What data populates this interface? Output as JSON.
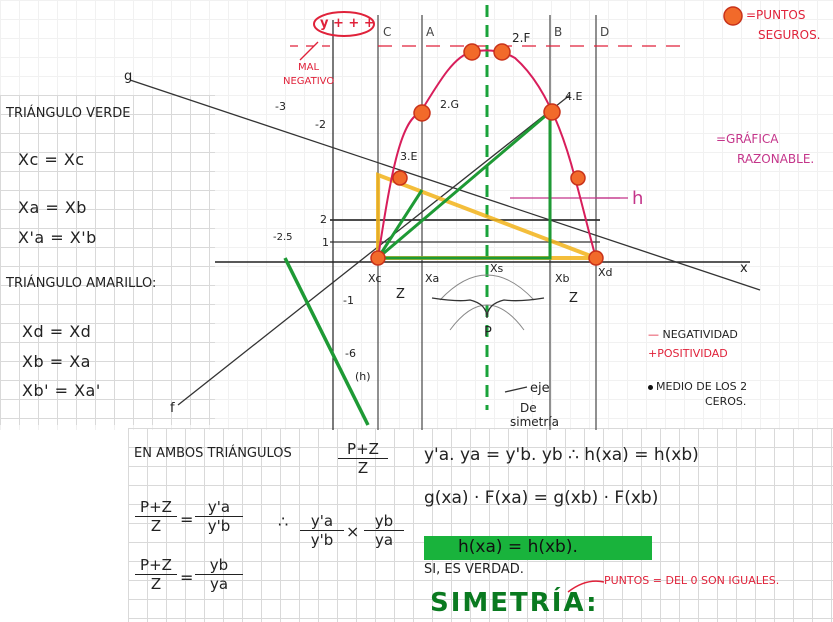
{
  "legend_top": {
    "safe_points_label": "=PUNTOS",
    "safe_points_label_2": "SEGUROS.",
    "y_signs": "y + + +",
    "bad_negative": "MAL",
    "bad_negative_2": "NEGATIVO",
    "reasonable_graph": "=GRÁFICA",
    "reasonable_graph_2": "RAZONABLE.",
    "h_label": "h"
  },
  "graph": {
    "col_labels": [
      "C",
      "A",
      "B",
      "D"
    ],
    "axis_x": "x",
    "axis_y": "y",
    "axis_f": "f",
    "axis_g": "g",
    "tick_pos": [
      "1",
      "2"
    ],
    "tick_neg": [
      "-1",
      "-2",
      "-3",
      "-6",
      "-2.5"
    ],
    "h_mark": "(h)",
    "point_labels": [
      "2.F",
      "2.G",
      "4.E",
      "3.E"
    ],
    "bottom_labels": [
      "Xc",
      "Xa",
      "Xs",
      "Xb",
      "Xd"
    ],
    "z_labels": [
      "Z",
      "Z"
    ],
    "p_label": "P",
    "axis_sym": "eje",
    "axis_sym_2": "De",
    "axis_sym_3": "simetría"
  },
  "green_triangle": {
    "title": "TRIÁNGULO VERDE",
    "lines": [
      "Xc = Xc",
      "Xa = Xb",
      "X'a = X'b"
    ]
  },
  "yellow_triangle": {
    "title": "TRIÁNGULO AMARILLO:",
    "lines": [
      "Xd = Xd",
      "Xb = Xa",
      "Xb' = Xa'"
    ]
  },
  "legend_right": {
    "negativity": "NEGATIVIDAD",
    "positivity": "POSITIVIDAD",
    "midpoint": "MEDIO DE LOS 2",
    "midpoint_2": "CEROS."
  },
  "bottom_left": {
    "intro": "EN AMBOS TRIÁNGULOS",
    "frac_pz": "P+Z",
    "frac_z": "Z",
    "ya_prime": "y'a",
    "yb_prime": "y'b",
    "yb": "yb",
    "ya": "ya",
    "therefore": "∴"
  },
  "bottom_right": {
    "eq1": "y'a. ya = y'b. yb  ∴ h(xa) = h(xb)",
    "eq2": "g(xa) · F(xa) = g(xb) · F(xb)",
    "highlight": "h(xa) = h(xb).",
    "confirm": "SI, ES VERDAD.",
    "symmetry": "SIMETRÍA:",
    "note": "PUNTOS = DEL 0 SON IGUALES."
  }
}
